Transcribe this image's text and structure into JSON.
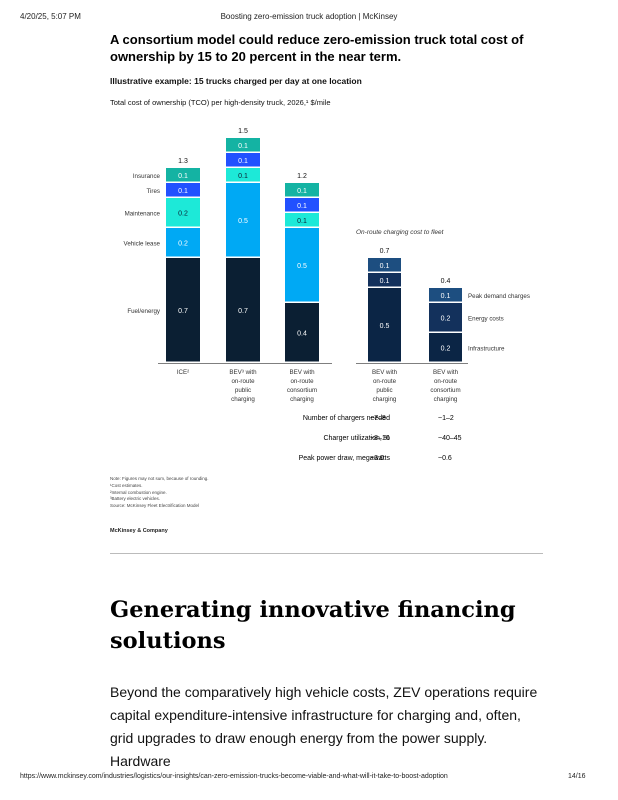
{
  "browser_header": {
    "datetime": "4/20/25, 5:07 PM",
    "page_title": "Boosting zero-emission truck adoption | McKinsey"
  },
  "exhibit": {
    "title": "A consortium model could reduce zero-emission truck total cost of ownership by 15 to 20 percent in the near term.",
    "subtitle": "Illustrative example: 15 trucks charged per day at one location",
    "unit_line": "Total cost of ownership (TCO) per high-density truck, 2026,¹ $/mile",
    "notes": [
      "Note: Figures may not sum, because of rounding.",
      "¹Cost estimates.",
      "²Internal combustion engine.",
      "³Battery electric vehicles.",
      "Source: McKinsey Fleet Electrification Model"
    ],
    "brand": "McKinsey & Company"
  },
  "chart_data": [
    {
      "type": "bar",
      "stacked": true,
      "title": "Total cost of ownership (TCO) per high-density truck, 2026, $/mile",
      "categories": [
        "ICE²",
        "BEV³ with on-route public charging",
        "BEV with on-route consortium charging"
      ],
      "series": [
        {
          "name": "Fuel/energy",
          "values": [
            0.7,
            0.7,
            0.4
          ],
          "color": "#0b1f33"
        },
        {
          "name": "Vehicle lease",
          "values": [
            0.2,
            0.5,
            0.5
          ],
          "color": "#00a9f4"
        },
        {
          "name": "Maintenance",
          "values": [
            0.2,
            0.1,
            0.1
          ],
          "color": "#1de9d8"
        },
        {
          "name": "Tires",
          "values": [
            0.1,
            0.1,
            0.1
          ],
          "color": "#2251ff"
        },
        {
          "name": "Insurance",
          "values": [
            0.1,
            0.1,
            0.1
          ],
          "color": "#14b3a3"
        }
      ],
      "totals": [
        1.3,
        1.5,
        1.2
      ],
      "legend_position": "left"
    },
    {
      "type": "bar",
      "stacked": true,
      "title": "On-route charging cost to fleet",
      "categories": [
        "BEV with on-route public charging",
        "BEV with on-route consortium charging"
      ],
      "series": [
        {
          "name": "Infrastructure",
          "values": [
            0.5,
            0.2
          ],
          "color": "#0b2545"
        },
        {
          "name": "Energy costs",
          "values": [
            0.1,
            0.2
          ],
          "color": "#13315c"
        },
        {
          "name": "Peak demand charges",
          "values": [
            0.1,
            0.1
          ],
          "color": "#1d4e80"
        }
      ],
      "totals": [
        0.7,
        0.4
      ],
      "legend_position": "right"
    }
  ],
  "metrics": [
    {
      "label": "Number of chargers needed",
      "public": "~7–8",
      "consortium": "~1–2"
    },
    {
      "label": "Charger utilization, %",
      "public": "~8–10",
      "consortium": "~40–45"
    },
    {
      "label": "Peak power draw, megawatts",
      "public": "~3.0",
      "consortium": "~0.6"
    }
  ],
  "article": {
    "heading": "Generating innovative financing solutions",
    "paragraph": "Beyond the comparatively high vehicle costs, ZEV operations require capital expenditure-intensive infrastructure for charging and, often, grid upgrades to draw enough energy from the power supply. Hardware"
  },
  "browser_footer": {
    "url": "https://www.mckinsey.com/industries/logistics/our-insights/can-zero-emission-trucks-become-viable-and-what-will-it-take-to-boost-adoption",
    "page": "14/16"
  }
}
